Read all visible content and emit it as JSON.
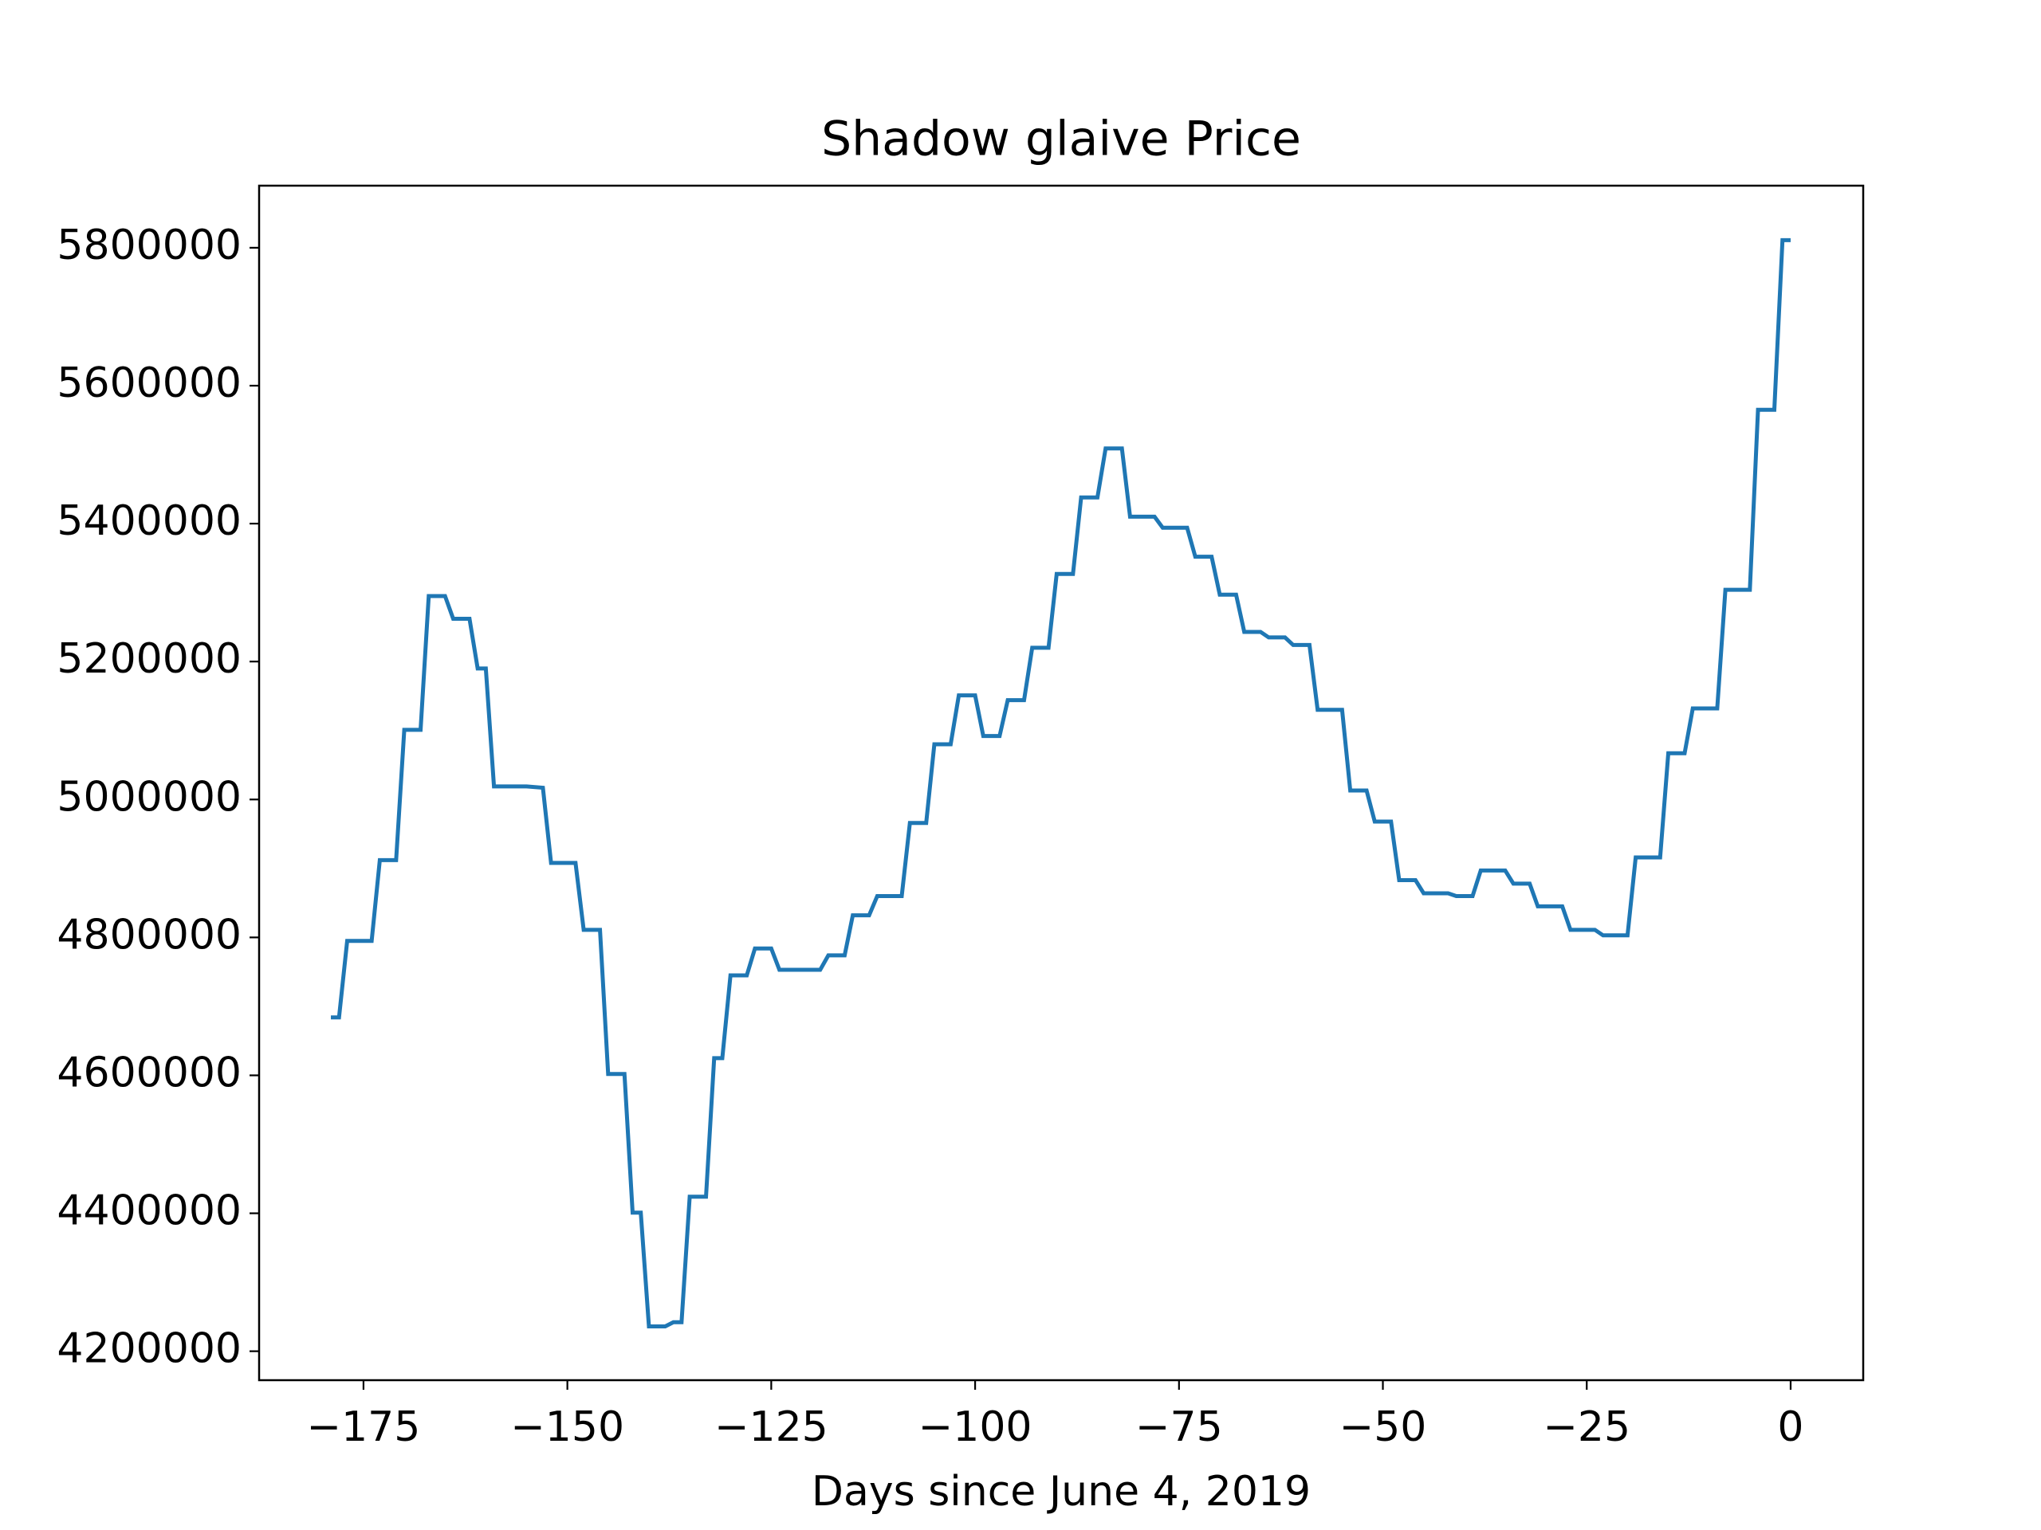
{
  "chart_data": {
    "type": "line",
    "title": "Shadow glaive Price",
    "x_label": "Days since June 4, 2019",
    "color": "#1f77b4",
    "x": [
      -179,
      -178,
      -177,
      -174,
      -173,
      -171,
      -170,
      -168,
      -167,
      -165,
      -164,
      -162,
      -161,
      -160,
      -159,
      -155,
      -153,
      -152,
      -149,
      -148,
      -146,
      -145,
      -143,
      -142,
      -141,
      -140,
      -138,
      -137,
      -136,
      -135,
      -133,
      -132,
      -131,
      -130,
      -128,
      -127,
      -125,
      -124,
      -119,
      -118,
      -116,
      -115,
      -113,
      -112,
      -109,
      -108,
      -106,
      -105,
      -103,
      -102,
      -100,
      -99,
      -97,
      -96,
      -94,
      -93,
      -91,
      -90,
      -88,
      -87,
      -85,
      -84,
      -82,
      -81,
      -78,
      -77,
      -74,
      -73,
      -71,
      -70,
      -68,
      -67,
      -65,
      -64,
      -62,
      -61,
      -59,
      -58,
      -55,
      -54,
      -52,
      -51,
      -49,
      -48,
      -46,
      -45,
      -42,
      -41,
      -39,
      -38,
      -35,
      -34,
      -32,
      -31,
      -28,
      -27,
      -24,
      -23,
      -20,
      -19,
      -16,
      -15,
      -13,
      -12,
      -9,
      -8,
      -5,
      -4,
      -2,
      -1,
      0
    ],
    "values": [
      4684000,
      4684000,
      4795000,
      4795000,
      4912000,
      4912000,
      5101000,
      5101000,
      5295000,
      5295000,
      5262000,
      5262000,
      5190000,
      5190000,
      5019000,
      5019000,
      5017000,
      4908000,
      4908000,
      4811000,
      4811000,
      4602000,
      4602000,
      4401000,
      4401000,
      4236000,
      4236000,
      4242000,
      4242000,
      4424000,
      4424000,
      4625000,
      4625000,
      4745000,
      4745000,
      4784000,
      4784000,
      4753000,
      4753000,
      4774000,
      4774000,
      4832000,
      4832000,
      4860000,
      4860000,
      4966000,
      4966000,
      5080000,
      5080000,
      5151000,
      5151000,
      5092000,
      5092000,
      5144000,
      5144000,
      5220000,
      5220000,
      5327000,
      5327000,
      5438000,
      5438000,
      5509000,
      5509000,
      5410000,
      5410000,
      5394000,
      5394000,
      5352000,
      5352000,
      5297000,
      5297000,
      5243000,
      5243000,
      5235000,
      5235000,
      5224000,
      5224000,
      5130000,
      5130000,
      5013000,
      5013000,
      4968000,
      4968000,
      4883000,
      4883000,
      4864000,
      4864000,
      4860000,
      4860000,
      4897000,
      4897000,
      4878000,
      4878000,
      4845000,
      4845000,
      4811000,
      4811000,
      4803000,
      4803000,
      4916000,
      4916000,
      5067000,
      5067000,
      5132000,
      5132000,
      5304000,
      5304000,
      5565000,
      5565000,
      5811000,
      5811000
    ],
    "xlim": [
      -187.8,
      8.9
    ],
    "ylim": [
      4158000,
      5890000
    ],
    "xticks": [
      {
        "value": -175,
        "label": "−175"
      },
      {
        "value": -150,
        "label": "−150"
      },
      {
        "value": -125,
        "label": "−125"
      },
      {
        "value": -100,
        "label": "−100"
      },
      {
        "value": -75,
        "label": "−75"
      },
      {
        "value": -50,
        "label": "−50"
      },
      {
        "value": -25,
        "label": "−25"
      },
      0
    ],
    "yticks": [
      4200000,
      4400000,
      4600000,
      4800000,
      5000000,
      5200000,
      5400000,
      5600000,
      5800000
    ]
  }
}
